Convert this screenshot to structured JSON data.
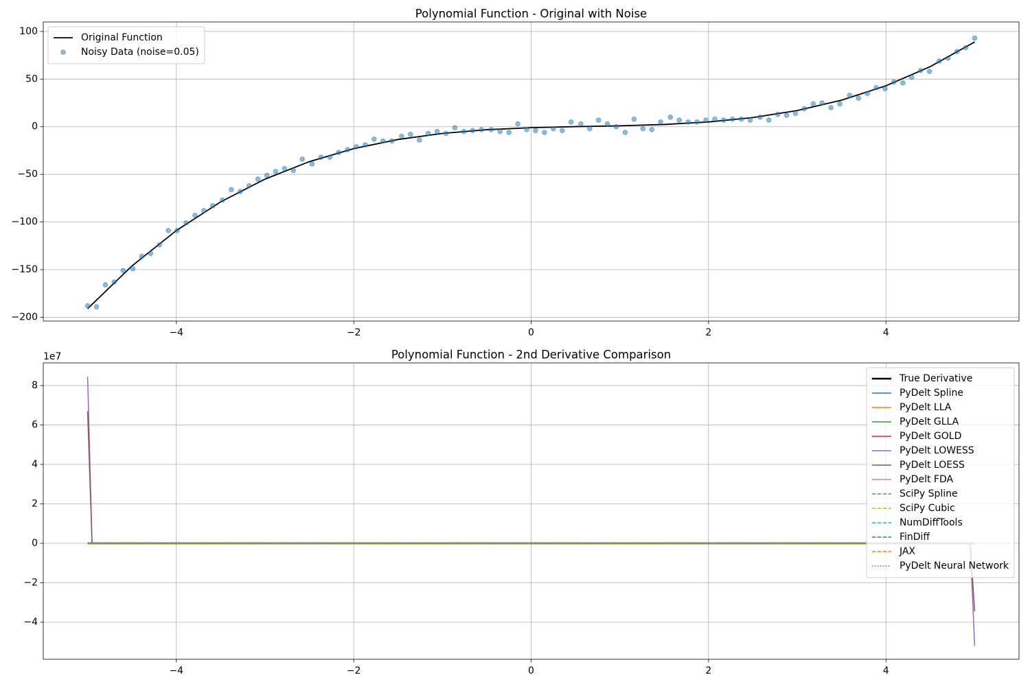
{
  "chart_data": [
    {
      "type": "line",
      "title": "Polynomial Function - Original with Noise",
      "xlim": [
        -5.5,
        5.5
      ],
      "ylim": [
        -204,
        110
      ],
      "xticks": [
        {
          "value": -4,
          "label": "−4"
        },
        {
          "value": -2,
          "label": "−2"
        },
        0,
        2,
        4
      ],
      "yticks": [
        {
          "value": -200,
          "label": "−200"
        },
        {
          "value": -150,
          "label": "−150"
        },
        {
          "value": -100,
          "label": "−100"
        },
        {
          "value": -50,
          "label": "−50"
        },
        0,
        50,
        100
      ],
      "grid": true,
      "legend": "upper left",
      "series": [
        {
          "name": "Original Function",
          "kind": "line",
          "color": "#000000",
          "width": 1.8,
          "style": "solid",
          "x": [
            -5,
            -4.5,
            -4,
            -3.5,
            -3,
            -2.5,
            -2,
            -1.5,
            -1,
            -0.5,
            0,
            0.5,
            1,
            1.5,
            2,
            2.5,
            3,
            3.5,
            4,
            4.5,
            5
          ],
          "values": [
            -191,
            -146.125,
            -109,
            -78.875,
            -55,
            -36.625,
            -23,
            -13.375,
            -7,
            -3.125,
            -1,
            0.125,
            1,
            2.375,
            5,
            9.625,
            17,
            27.875,
            43,
            63.125,
            89
          ]
        },
        {
          "name": "Noisy Data (noise=0.05)",
          "kind": "scatter",
          "color": "#1f77b4",
          "x": [
            -5,
            -4.9,
            -4.8,
            -4.7,
            -4.6,
            -4.49,
            -4.39,
            -4.29,
            -4.19,
            -4.09,
            -3.99,
            -3.89,
            -3.79,
            -3.69,
            -3.59,
            -3.48,
            -3.38,
            -3.28,
            -3.18,
            -3.08,
            -2.98,
            -2.88,
            -2.78,
            -2.68,
            -2.58,
            -2.47,
            -2.37,
            -2.27,
            -2.17,
            -2.07,
            -1.97,
            -1.87,
            -1.77,
            -1.67,
            -1.57,
            -1.46,
            -1.36,
            -1.26,
            -1.16,
            -1.06,
            -0.96,
            -0.86,
            -0.76,
            -0.66,
            -0.56,
            -0.45,
            -0.35,
            -0.25,
            -0.15,
            -0.05,
            0.05,
            0.15,
            0.25,
            0.35,
            0.45,
            0.56,
            0.66,
            0.76,
            0.86,
            0.96,
            1.06,
            1.16,
            1.26,
            1.36,
            1.46,
            1.57,
            1.67,
            1.77,
            1.87,
            1.97,
            2.07,
            2.17,
            2.27,
            2.37,
            2.47,
            2.58,
            2.68,
            2.78,
            2.88,
            2.98,
            3.08,
            3.18,
            3.28,
            3.38,
            3.48,
            3.59,
            3.69,
            3.79,
            3.89,
            3.99,
            4.09,
            4.19,
            4.29,
            4.39,
            4.49,
            4.6,
            4.7,
            4.8,
            4.9,
            5
          ],
          "values": [
            -188,
            -189,
            -166,
            -163,
            -151,
            -149,
            -136,
            -133,
            -124,
            -109,
            -109,
            -101,
            -93,
            -88,
            -83,
            -77,
            -66,
            -68,
            -62,
            -55,
            -51,
            -47,
            -44,
            -46,
            -34,
            -39,
            -32,
            -32,
            -27,
            -24,
            -21,
            -19,
            -13,
            -15,
            -15,
            -10,
            -8,
            -14,
            -7,
            -5,
            -7,
            -1,
            -5,
            -4,
            -3,
            -3,
            -5,
            -6,
            3,
            -3,
            -4,
            -6,
            -2,
            -4,
            5,
            3,
            -2,
            7,
            3,
            0,
            -6,
            8,
            -2,
            -3,
            5,
            10,
            7,
            5,
            5,
            7,
            8,
            7,
            8,
            8,
            7,
            10,
            7,
            13,
            12,
            14,
            19,
            24,
            25,
            20,
            24,
            33,
            30,
            35,
            41,
            40,
            47,
            46,
            52,
            59,
            58,
            69,
            72,
            79,
            83,
            93
          ]
        }
      ]
    },
    {
      "type": "line",
      "title": "Polynomial Function - 2nd Derivative Comparison",
      "offset_label": "1e7",
      "xlim": [
        -5.5,
        5.5
      ],
      "ylim": [
        -5.88,
        9.15
      ],
      "xticks": [
        {
          "value": -4,
          "label": "−4"
        },
        {
          "value": -2,
          "label": "−2"
        },
        0,
        2,
        4
      ],
      "yticks": [
        {
          "value": -4,
          "label": "−4"
        },
        {
          "value": -2,
          "label": "−2"
        },
        0,
        2,
        4,
        6,
        8
      ],
      "grid": true,
      "legend": "upper right",
      "series": [
        {
          "name": "True Derivative",
          "kind": "line",
          "color": "#000000",
          "width": 2.4,
          "style": "solid",
          "x": [
            -5,
            -4.95,
            4.95,
            5
          ],
          "values": [
            0,
            0,
            0,
            0
          ]
        },
        {
          "name": "PyDelt Spline",
          "kind": "line",
          "color": "#1f77b4",
          "width": 1.5,
          "style": "solid",
          "x": [
            -5,
            -4.95,
            4.95,
            5
          ],
          "values": [
            0,
            0,
            0,
            0
          ]
        },
        {
          "name": "PyDelt LLA",
          "kind": "line",
          "color": "#ff7f0e",
          "width": 1.5,
          "style": "solid",
          "x": [
            -5,
            -4.95,
            4.95,
            5
          ],
          "values": [
            0,
            0,
            0,
            0
          ]
        },
        {
          "name": "PyDelt GLLA",
          "kind": "line",
          "color": "#2ca02c",
          "width": 1.5,
          "style": "solid",
          "x": [
            -5,
            -4.95,
            4.95,
            5
          ],
          "values": [
            0,
            0,
            0,
            0
          ]
        },
        {
          "name": "PyDelt GOLD",
          "kind": "line",
          "color": "#d62728",
          "width": 1.5,
          "style": "solid",
          "x": [
            -5,
            -4.95,
            4.95,
            5
          ],
          "values": [
            0,
            0,
            0,
            0
          ]
        },
        {
          "name": "PyDelt LOWESS",
          "kind": "line",
          "color": "#9467bd",
          "width": 1.5,
          "style": "solid",
          "x": [
            -5,
            -4.95,
            4.95,
            5
          ],
          "values": [
            8.45,
            0,
            0,
            -5.2
          ]
        },
        {
          "name": "PyDelt LOESS",
          "kind": "line",
          "color": "#8c564b",
          "width": 1.5,
          "style": "solid",
          "x": [
            -5,
            -4.95,
            4.95,
            5
          ],
          "values": [
            6.7,
            0,
            0,
            -3.45
          ]
        },
        {
          "name": "PyDelt FDA",
          "kind": "line",
          "color": "#e377c2",
          "width": 1.5,
          "style": "solid",
          "x": [
            -5,
            -4.95,
            4.95,
            5
          ],
          "values": [
            0,
            0,
            0,
            0
          ]
        },
        {
          "name": "SciPy Spline",
          "kind": "line",
          "color": "#7f7f7f",
          "width": 1.5,
          "style": "dashed",
          "x": [
            -5,
            -4.95,
            4.95,
            5
          ],
          "values": [
            0,
            0,
            0,
            0
          ]
        },
        {
          "name": "SciPy Cubic",
          "kind": "line",
          "color": "#bcbd22",
          "width": 1.5,
          "style": "dashed",
          "x": [
            -5,
            -4.95,
            4.95,
            5
          ],
          "values": [
            0,
            0,
            0,
            0
          ]
        },
        {
          "name": "NumDiffTools",
          "kind": "line",
          "color": "#17becf",
          "width": 1.5,
          "style": "dashed",
          "x": [
            -5,
            -4.95,
            4.95,
            5
          ],
          "values": [
            0,
            0,
            0,
            0
          ]
        },
        {
          "name": "FinDiff",
          "kind": "line",
          "color": "#1f77b4",
          "width": 1.5,
          "style": "dashed",
          "x": [
            -5,
            -4.95,
            4.95,
            5
          ],
          "values": [
            0,
            0,
            0,
            0
          ]
        },
        {
          "name": "JAX",
          "kind": "line",
          "color": "#ff7f0e",
          "width": 1.5,
          "style": "dashed",
          "x": [
            -5,
            -4.95,
            4.95,
            5
          ],
          "values": [
            0,
            0,
            0,
            0
          ]
        },
        {
          "name": "PyDelt Neural Network",
          "kind": "line",
          "color": "#2ca02c",
          "width": 1.5,
          "style": "dotted",
          "x": [
            -5,
            -4.95,
            4.95,
            5
          ],
          "values": [
            0,
            0,
            0,
            0
          ]
        }
      ]
    }
  ]
}
